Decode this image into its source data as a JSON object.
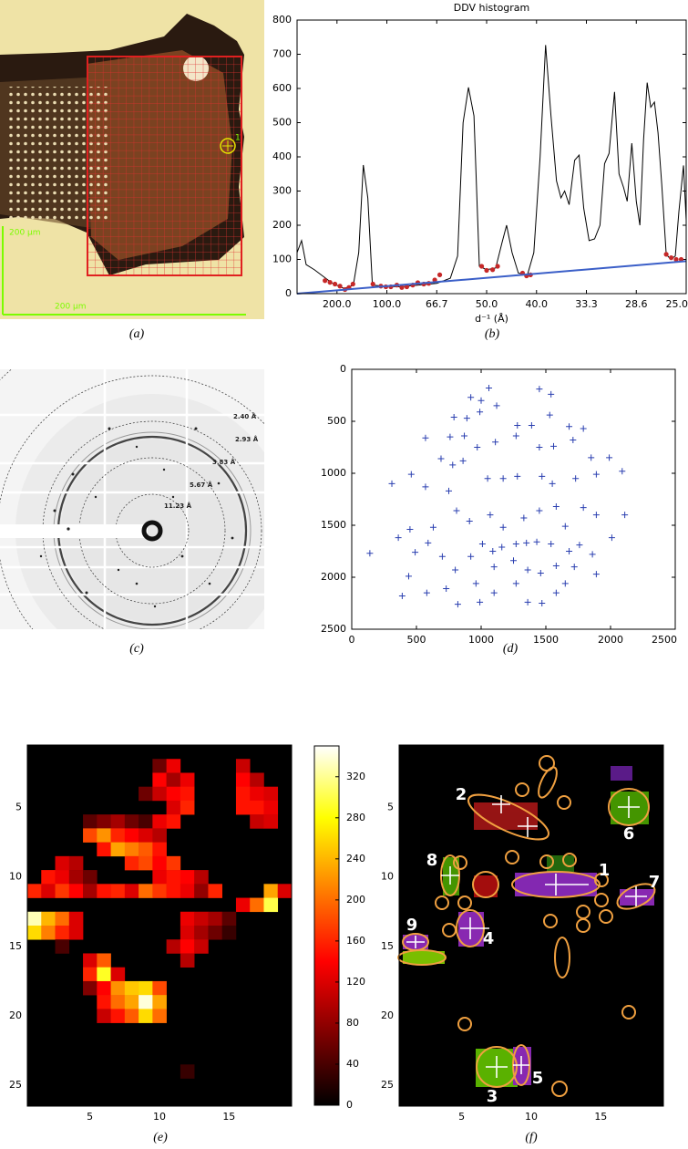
{
  "figure": {
    "captions": [
      "(a)",
      "(b)",
      "(c)",
      "(d)",
      "(e)",
      "(f)"
    ],
    "panel_a": {
      "scale_labels": [
        "200 μm",
        "200 μm"
      ],
      "marker_label": "1"
    },
    "panel_c": {
      "ring_labels": [
        "2.40 Å",
        "2.93 Å",
        "3.83 Å",
        "5.67 Å",
        "11.23 Å"
      ]
    }
  },
  "chart_data": [
    {
      "type": "line",
      "title": "DDV histogram",
      "xlabel": "d⁻¹ (Å)",
      "xlim": [
        0.001,
        0.04
      ],
      "ylim": [
        0,
        800
      ],
      "xticks": [
        {
          "value": 0.005,
          "label": "200.0"
        },
        {
          "value": 0.01,
          "label": "100.0"
        },
        {
          "value": 0.015,
          "label": "66.7"
        },
        {
          "value": 0.02,
          "label": "50.0"
        },
        {
          "value": 0.025,
          "label": "40.0"
        },
        {
          "value": 0.03,
          "label": "33.3"
        },
        {
          "value": 0.035,
          "label": "28.6"
        },
        {
          "value": 0.04,
          "label": "25.0"
        }
      ],
      "yticks": [
        0,
        100,
        200,
        300,
        400,
        500,
        600,
        700,
        800
      ],
      "grid": false,
      "series": [
        {
          "color": "#000000",
          "mode": "line",
          "x": [
            0.001,
            0.00145,
            0.00191,
            0.00273,
            0.00364,
            0.00455,
            0.00573,
            0.00664,
            0.00718,
            0.00764,
            0.00809,
            0.00855,
            0.00955,
            0.01136,
            0.01318,
            0.015,
            0.01636,
            0.01709,
            0.01764,
            0.01818,
            0.01873,
            0.01927,
            0.02,
            0.02091,
            0.02155,
            0.022,
            0.02255,
            0.02318,
            0.02409,
            0.02473,
            0.02536,
            0.02591,
            0.02645,
            0.027,
            0.02745,
            0.02782,
            0.02827,
            0.02882,
            0.02927,
            0.02973,
            0.03027,
            0.03082,
            0.03136,
            0.03182,
            0.03227,
            0.03282,
            0.03327,
            0.03373,
            0.03409,
            0.03455,
            0.035,
            0.03536,
            0.03573,
            0.03609,
            0.03645,
            0.03682,
            0.03718,
            0.03755,
            0.038,
            0.03845,
            0.03891,
            0.03927,
            0.03973,
            0.04
          ],
          "values": [
            120,
            155,
            85,
            70,
            50,
            30,
            15,
            25,
            120,
            376,
            280,
            25,
            22,
            20,
            25,
            30,
            45,
            110,
            500,
            603,
            520,
            80,
            70,
            75,
            150,
            200,
            120,
            60,
            55,
            120,
            400,
            727,
            520,
            330,
            280,
            300,
            260,
            390,
            405,
            250,
            155,
            160,
            200,
            380,
            410,
            590,
            350,
            310,
            270,
            440,
            270,
            200,
            450,
            617,
            545,
            560,
            470,
            320,
            115,
            100,
            110,
            240,
            375,
            215
          ]
        },
        {
          "color": "#c62828",
          "mode": "markers",
          "x": [
            0.0038,
            0.0043,
            0.0048,
            0.0053,
            0.0058,
            0.0062,
            0.0066,
            0.0086,
            0.0094,
            0.0099,
            0.0104,
            0.011,
            0.0115,
            0.012,
            0.0126,
            0.0131,
            0.0137,
            0.0142,
            0.0148,
            0.0153,
            0.0195,
            0.02,
            0.0206,
            0.0211,
            0.0236,
            0.024,
            0.0244,
            0.038,
            0.0385,
            0.039,
            0.0395
          ],
          "values": [
            38,
            33,
            28,
            22,
            12,
            18,
            28,
            28,
            22,
            20,
            20,
            25,
            18,
            20,
            25,
            32,
            28,
            30,
            40,
            55,
            80,
            68,
            70,
            80,
            60,
            52,
            55,
            115,
            105,
            100,
            100
          ]
        },
        {
          "color": "#3b5fc8",
          "mode": "line",
          "x": [
            0.001,
            0.04
          ],
          "values": [
            0,
            95
          ]
        }
      ]
    },
    {
      "type": "scatter",
      "color": "#2a3fb0",
      "xlim": [
        0,
        2500
      ],
      "ylim": [
        2500,
        0
      ],
      "xticks": [
        0,
        500,
        1000,
        1500,
        2000,
        2500
      ],
      "yticks": [
        0,
        500,
        1000,
        1500,
        2000,
        2500
      ],
      "grid": false,
      "x": [
        1060,
        1450,
        920,
        1000,
        1540,
        790,
        890,
        990,
        1120,
        1280,
        1390,
        1530,
        1680,
        1790,
        760,
        870,
        970,
        1110,
        1270,
        1450,
        1560,
        1710,
        1850,
        1990,
        570,
        690,
        780,
        860,
        1050,
        1170,
        1280,
        1470,
        1550,
        1730,
        1890,
        2090,
        460,
        310,
        570,
        750,
        2110,
        2010,
        1760,
        1650,
        1540,
        1430,
        1350,
        1270,
        1160,
        1090,
        1010,
        920,
        800,
        700,
        590,
        490,
        440,
        390,
        140,
        360,
        450,
        630,
        810,
        910,
        1070,
        1170,
        1330,
        1450,
        1580,
        1790,
        1890,
        1680,
        1860,
        1720,
        1580,
        1460,
        1360,
        1250,
        1100,
        960,
        1100,
        990,
        820,
        730,
        1360,
        1470,
        1580,
        1270,
        1650,
        1890,
        580
      ],
      "values": [
        180,
        190,
        270,
        300,
        240,
        460,
        470,
        410,
        350,
        540,
        540,
        440,
        550,
        570,
        650,
        640,
        750,
        700,
        640,
        750,
        740,
        680,
        850,
        850,
        660,
        860,
        920,
        880,
        1050,
        1050,
        1030,
        1030,
        1100,
        1050,
        1010,
        980,
        1010,
        1100,
        1130,
        1170,
        1400,
        1620,
        1690,
        1510,
        1680,
        1660,
        1670,
        1680,
        1710,
        1750,
        1680,
        1800,
        1930,
        1800,
        1670,
        1760,
        1990,
        2180,
        1770,
        1620,
        1540,
        1520,
        1360,
        1460,
        1400,
        1520,
        1430,
        1360,
        1320,
        1330,
        1400,
        1750,
        1780,
        1900,
        1890,
        1960,
        1930,
        1840,
        1900,
        2060,
        2150,
        2240,
        2260,
        2110,
        2240,
        2250,
        2150,
        2060,
        2060,
        1970,
        2150
      ]
    },
    {
      "type": "heatmap",
      "xlim": [
        0.5,
        19.5
      ],
      "ylim": [
        26.5,
        0.5
      ],
      "xticks": [
        5,
        10,
        15
      ],
      "yticks": [
        5,
        10,
        15,
        20,
        25
      ],
      "clim": [
        0,
        350
      ],
      "cticks": [
        0,
        40,
        80,
        120,
        160,
        200,
        240,
        280,
        320
      ],
      "x": [
        16,
        16,
        17,
        16,
        17,
        18,
        16,
        17,
        18,
        17,
        18,
        10,
        11,
        10,
        11,
        12,
        9,
        10,
        11,
        12,
        11,
        12,
        5,
        6,
        7,
        8,
        9,
        10,
        11,
        5,
        6,
        7,
        8,
        9,
        10,
        6,
        7,
        8,
        9,
        10,
        8,
        9,
        10,
        11,
        3,
        4,
        10,
        11,
        12,
        13,
        2,
        3,
        4,
        5,
        1,
        2,
        3,
        4,
        5,
        6,
        7,
        8,
        9,
        10,
        11,
        12,
        13,
        14,
        18,
        19,
        16,
        17,
        18,
        1,
        2,
        3,
        4,
        1,
        2,
        3,
        4,
        3,
        12,
        13,
        14,
        15,
        12,
        13,
        14,
        15,
        11,
        12,
        13,
        12,
        5,
        6,
        5,
        6,
        7,
        5,
        6,
        7,
        8,
        9,
        10,
        6,
        7,
        8,
        9,
        10,
        6,
        7,
        8,
        9,
        10,
        12
      ],
      "y": [
        2,
        3,
        3,
        4,
        4,
        4,
        5,
        5,
        5,
        6,
        6,
        2,
        2,
        3,
        3,
        3,
        4,
        4,
        4,
        4,
        5,
        5,
        6,
        6,
        6,
        6,
        6,
        6,
        6,
        7,
        7,
        7,
        7,
        7,
        7,
        8,
        8,
        8,
        8,
        8,
        9,
        9,
        9,
        9,
        9,
        9,
        10,
        10,
        10,
        10,
        10,
        10,
        10,
        10,
        11,
        11,
        11,
        11,
        11,
        11,
        11,
        11,
        11,
        11,
        11,
        11,
        11,
        11,
        11,
        11,
        12,
        12,
        12,
        13,
        13,
        13,
        13,
        14,
        14,
        14,
        14,
        15,
        13,
        13,
        13,
        13,
        14,
        14,
        14,
        14,
        15,
        15,
        15,
        16,
        16,
        16,
        17,
        17,
        17,
        18,
        18,
        18,
        18,
        18,
        18,
        19,
        19,
        19,
        19,
        19,
        20,
        20,
        20,
        20,
        20,
        24
      ],
      "values": [
        110,
        140,
        100,
        150,
        130,
        120,
        150,
        150,
        130,
        110,
        120,
        60,
        130,
        140,
        90,
        130,
        60,
        110,
        140,
        150,
        120,
        160,
        50,
        70,
        90,
        60,
        40,
        130,
        150,
        180,
        220,
        160,
        140,
        120,
        100,
        150,
        230,
        210,
        190,
        150,
        160,
        180,
        140,
        170,
        120,
        100,
        130,
        150,
        140,
        100,
        150,
        130,
        90,
        60,
        160,
        120,
        170,
        140,
        90,
        150,
        160,
        120,
        200,
        170,
        150,
        130,
        80,
        160,
        230,
        120,
        130,
        200,
        300,
        330,
        240,
        200,
        120,
        260,
        210,
        160,
        120,
        40,
        130,
        110,
        90,
        50,
        120,
        90,
        60,
        30,
        100,
        140,
        110,
        100,
        120,
        190,
        160,
        290,
        120,
        70,
        140,
        220,
        250,
        260,
        180,
        150,
        200,
        230,
        340,
        230,
        110,
        150,
        190,
        260,
        200,
        30
      ]
    },
    {
      "type": "image",
      "xlim": [
        0.5,
        19.5
      ],
      "ylim": [
        26.5,
        0.5
      ],
      "xticks": [
        5,
        10,
        15
      ],
      "yticks": [
        5,
        10,
        15,
        20,
        25
      ],
      "spot_labels": [
        "1",
        "2",
        "3",
        "4",
        "5",
        "6",
        "7",
        "8",
        "9"
      ]
    }
  ]
}
